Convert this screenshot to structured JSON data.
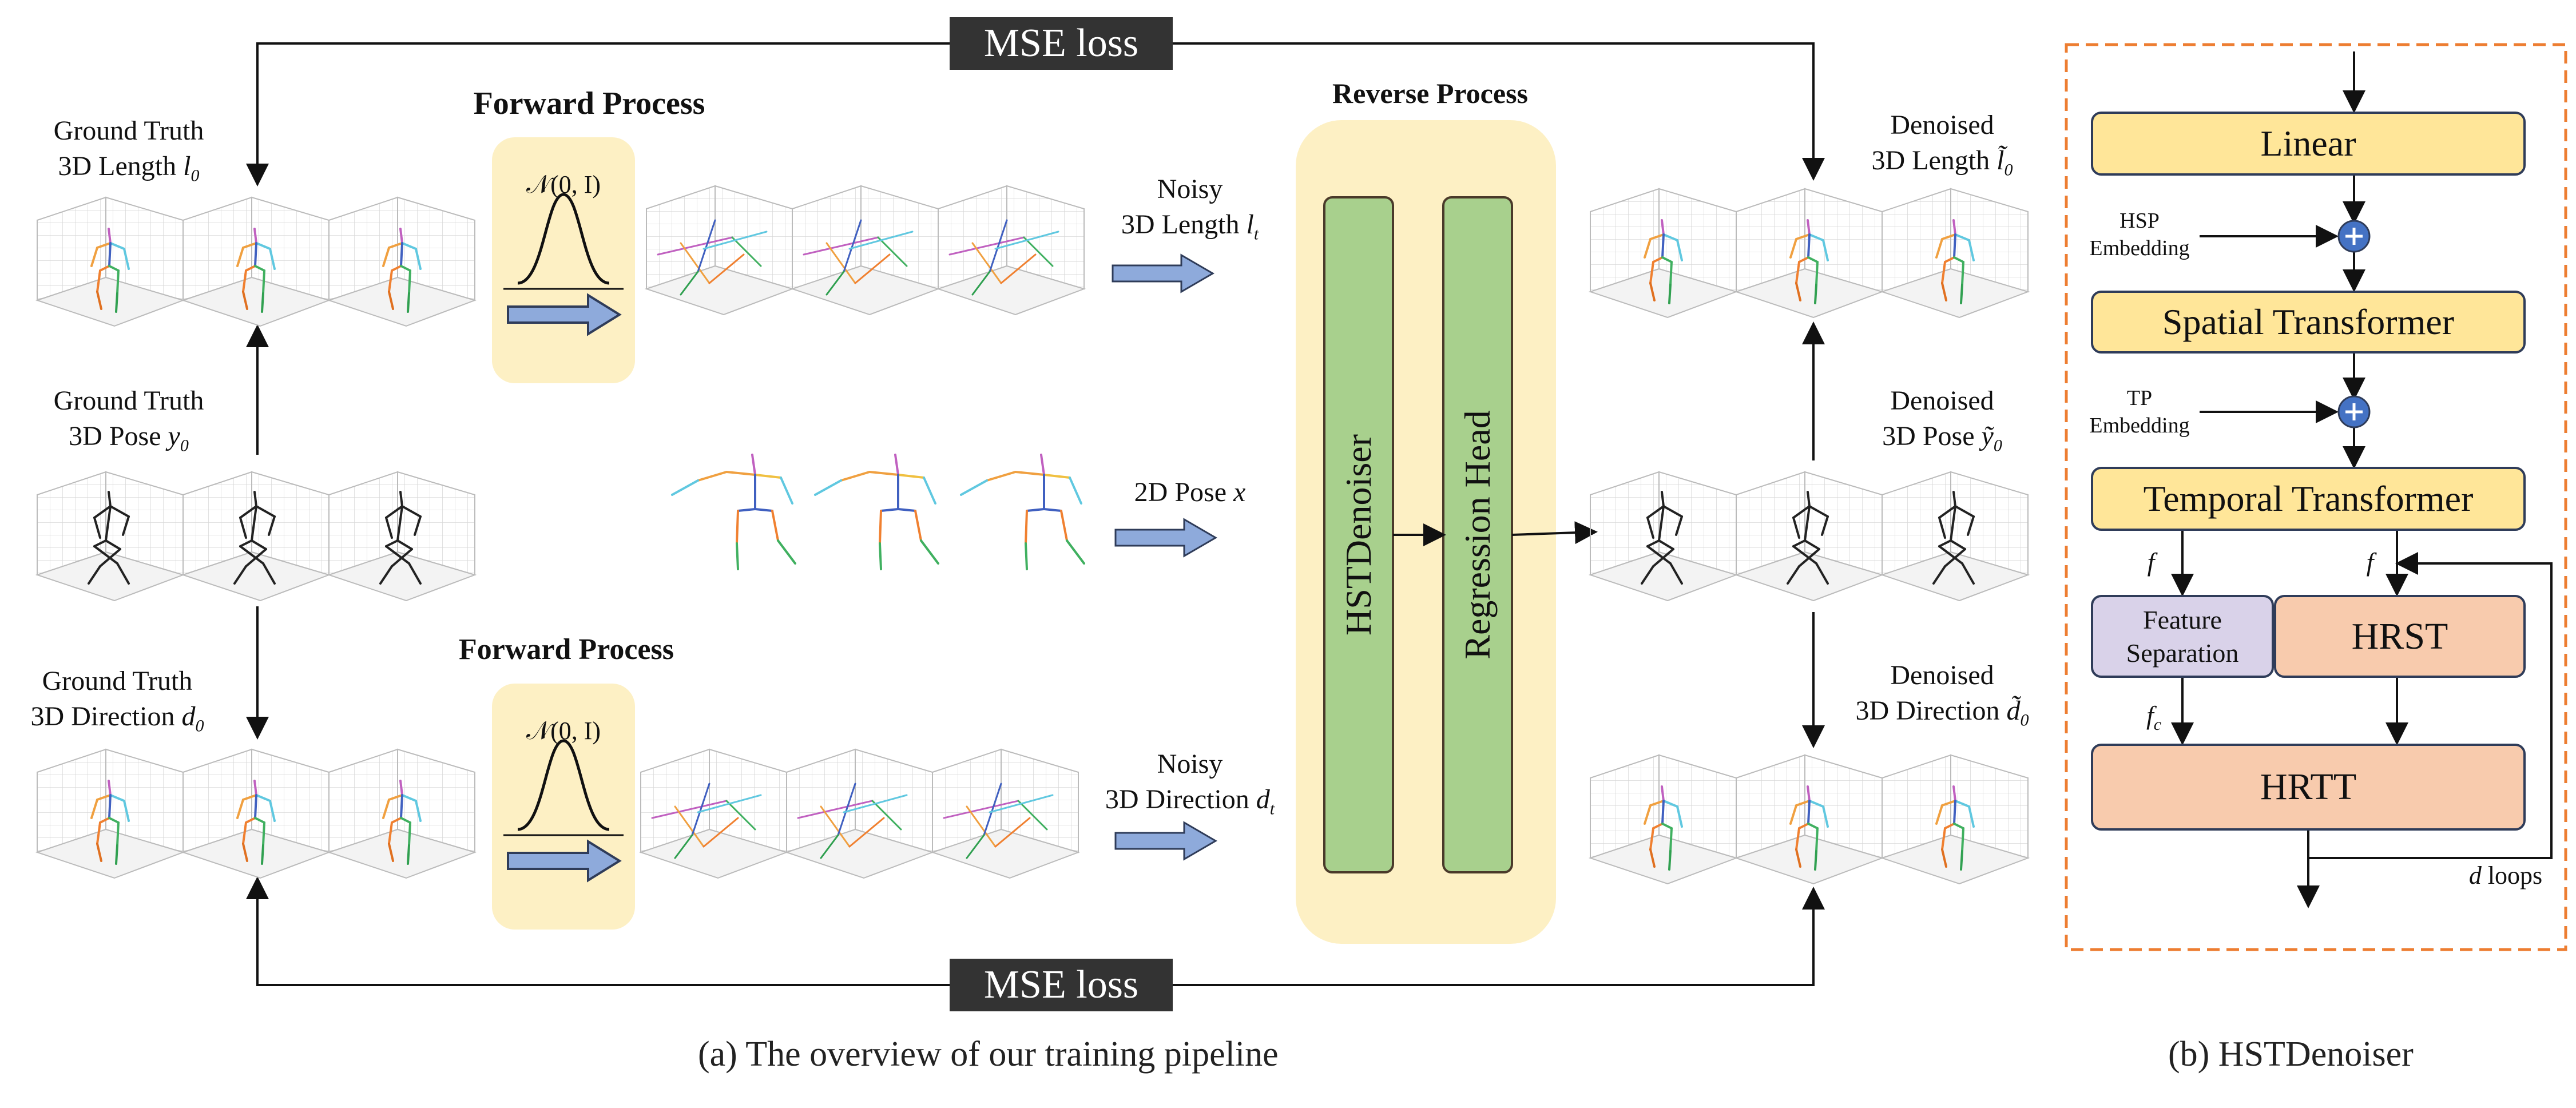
{
  "loss": {
    "top": "MSE loss",
    "bottom": "MSE loss"
  },
  "forward": {
    "top_title": "Forward Process",
    "bottom_title": "Forward Process",
    "dist": "𝒩(0, I)"
  },
  "reverse": {
    "title": "Reverse Process",
    "denoiser": "HSTDenoiser",
    "head": "Regression Head"
  },
  "inputs": {
    "gt_length_l1": "Ground Truth",
    "gt_length_l2": "3D Length",
    "gt_length_sym": "l",
    "gt_length_sub": "0",
    "gt_pose_l1": "Ground Truth",
    "gt_pose_l2": "3D Pose",
    "gt_pose_sym": "y",
    "gt_pose_sub": "0",
    "gt_dir_l1": "Ground Truth",
    "gt_dir_l2": "3D Direction",
    "gt_dir_sym": "d",
    "gt_dir_sub": "0"
  },
  "noisy": {
    "len_l1": "Noisy",
    "len_l2": "3D Length",
    "len_sym": "l",
    "len_sub": "t",
    "pose2d": "2D Pose",
    "pose2d_sym": "x",
    "dir_l1": "Noisy",
    "dir_l2": "3D Direction",
    "dir_sym": "d",
    "dir_sub": "t"
  },
  "outputs": {
    "len_l1": "Denoised",
    "len_l2": "3D Length",
    "len_sym": "l̃",
    "len_sub": "0",
    "pose_l1": "Denoised",
    "pose_l2": "3D Pose",
    "pose_sym": "ỹ",
    "pose_sub": "0",
    "dir_l1": "Denoised",
    "dir_l2": "3D Direction",
    "dir_sym": "d̃",
    "dir_sub": "0"
  },
  "hstd": {
    "linear": "Linear",
    "hsp_l1": "HSP",
    "hsp_l2": "Embedding",
    "spatial": "Spatial Transformer",
    "tp_l1": "TP",
    "tp_l2": "Embedding",
    "temporal": "Temporal Transformer",
    "f_left": "f",
    "f_right": "f",
    "feat_l1": "Feature",
    "feat_l2": "Separation",
    "hrst": "HRST",
    "fc": "f",
    "fc_sub": "c",
    "hrtt": "HRTT",
    "loops_sym": "d",
    "loops": "loops"
  },
  "captions": {
    "a": "(a) The overview of our training pipeline",
    "b": "(b) HSTDenoiser"
  },
  "colors": {
    "yellow_bg": "#fdf0c4",
    "green": "#a8d08d",
    "arrow_blue": "#8eaadb",
    "box_yellow": "#ffe699",
    "box_purple": "#d9d2e9",
    "box_orange": "#f8cbad",
    "dashed_orange": "#ed7d31",
    "loss_bg": "#333333",
    "plus_blue": "#4472c4"
  }
}
